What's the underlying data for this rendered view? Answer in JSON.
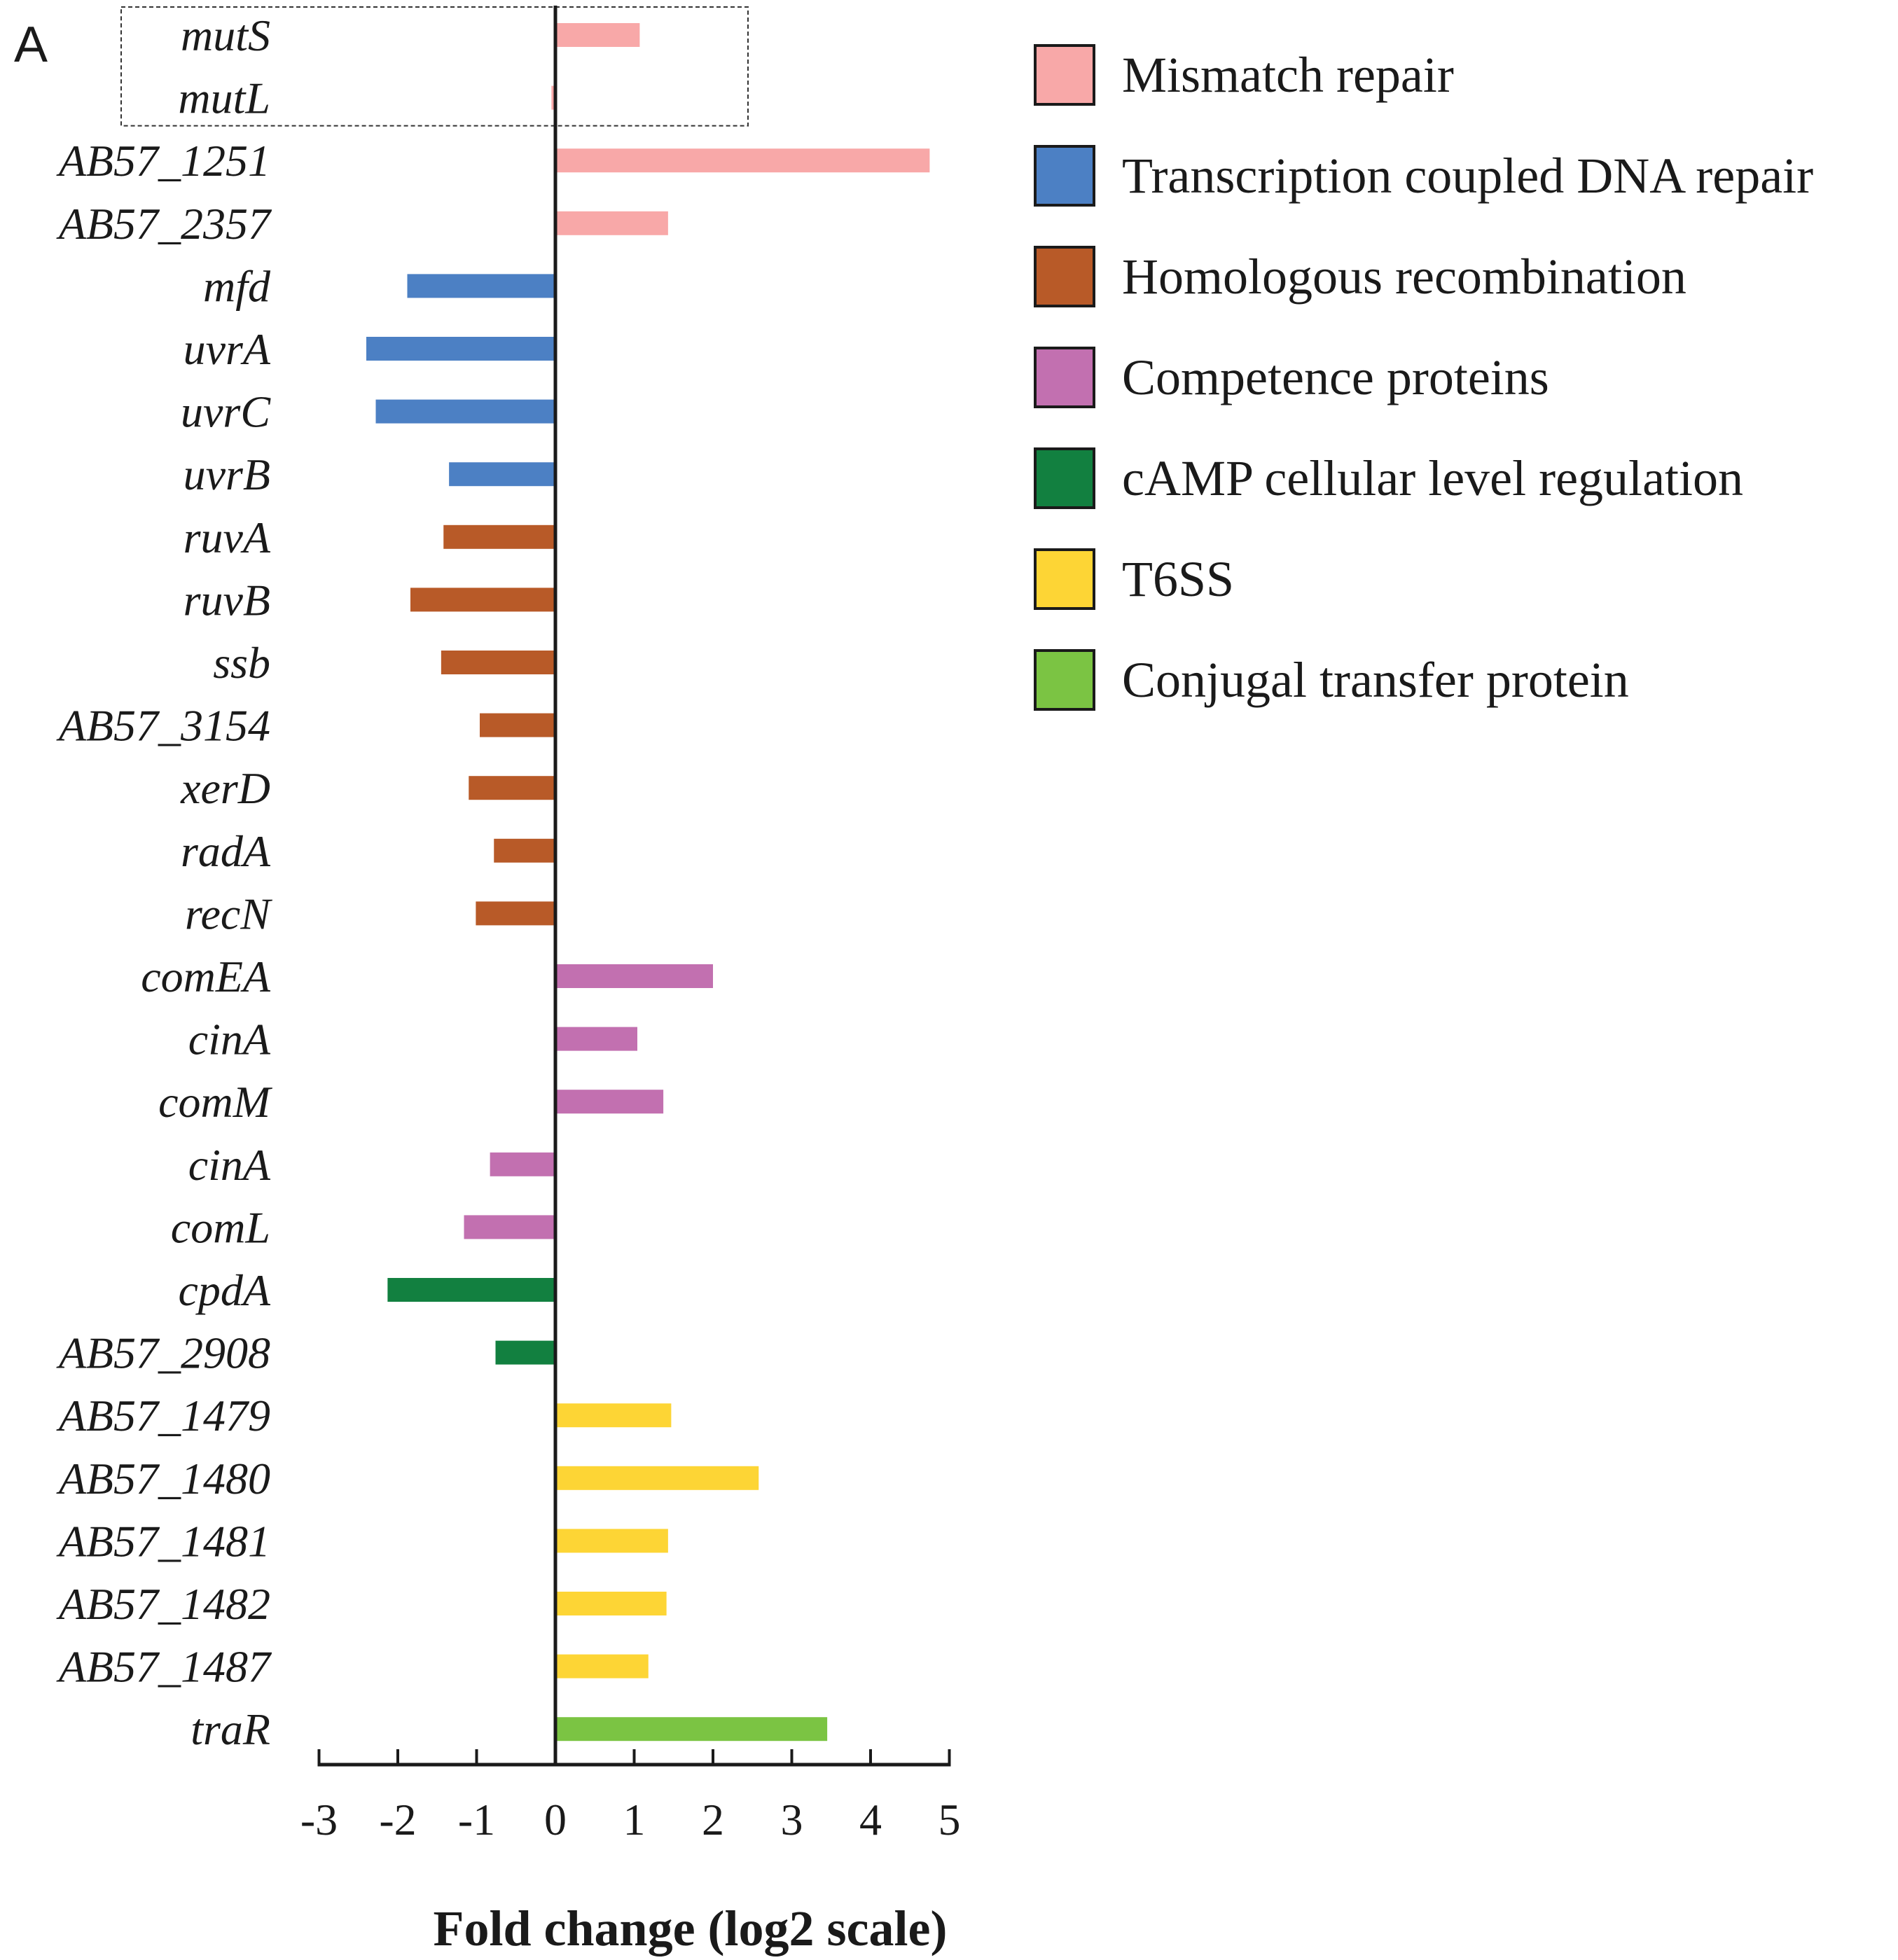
{
  "panel_label": "A",
  "colors": {
    "mismatch": "#f8a8a8",
    "transcription": "#4c80c4",
    "homologous": "#b85a28",
    "competence": "#c270b0",
    "camp": "#128040",
    "t6ss": "#fdd535",
    "conjugal": "#7bc443",
    "axis": "#1a1a1a",
    "highlight_box": "#333333"
  },
  "chart_data": {
    "type": "bar",
    "orientation": "horizontal",
    "title": "",
    "xlabel": "Fold change (log2 scale)",
    "ylabel": "",
    "xlim": [
      -3,
      5
    ],
    "xticks": [
      "-3",
      "-2",
      "-1",
      "0",
      "1",
      "2",
      "3",
      "4",
      "5"
    ],
    "grid": false,
    "legend_position": "top-right",
    "categories": [
      "mutS",
      "mutL",
      "AB57_1251",
      "AB57_2357",
      "mfd",
      "uvrA",
      "uvrC",
      "uvrB",
      "ruvA",
      "ruvB",
      "ssb",
      "AB57_3154",
      "xerD",
      "radA",
      "recN",
      "comEA",
      "cinA",
      "comM",
      "cinA",
      "comL",
      "cpdA",
      "AB57_2908",
      "AB57_1479",
      "AB57_1480",
      "AB57_1481",
      "AB57_1482",
      "AB57_1487",
      "traR"
    ],
    "values": [
      1.07,
      -0.05,
      4.75,
      1.43,
      -1.88,
      -2.4,
      -2.28,
      -1.35,
      -1.42,
      -1.84,
      -1.45,
      -0.96,
      -1.1,
      -0.78,
      -1.01,
      2.0,
      1.04,
      1.37,
      -0.83,
      -1.16,
      -2.13,
      -0.76,
      1.47,
      2.58,
      1.43,
      1.41,
      1.18,
      3.45
    ],
    "groups": [
      "mismatch",
      "mismatch",
      "mismatch",
      "mismatch",
      "transcription",
      "transcription",
      "transcription",
      "transcription",
      "homologous",
      "homologous",
      "homologous",
      "homologous",
      "homologous",
      "homologous",
      "homologous",
      "competence",
      "competence",
      "competence",
      "competence",
      "competence",
      "camp",
      "camp",
      "t6ss",
      "t6ss",
      "t6ss",
      "t6ss",
      "t6ss",
      "conjugal"
    ],
    "highlight_rows": [
      "mutS",
      "mutL"
    ],
    "legend": [
      {
        "key": "mismatch",
        "label": "Mismatch repair"
      },
      {
        "key": "transcription",
        "label": "Transcription coupled DNA repair"
      },
      {
        "key": "homologous",
        "label": "Homologous recombination"
      },
      {
        "key": "competence",
        "label": "Competence proteins"
      },
      {
        "key": "camp",
        "label": "cAMP cellular level regulation"
      },
      {
        "key": "t6ss",
        "label": "T6SS"
      },
      {
        "key": "conjugal",
        "label": "Conjugal transfer protein"
      }
    ]
  }
}
